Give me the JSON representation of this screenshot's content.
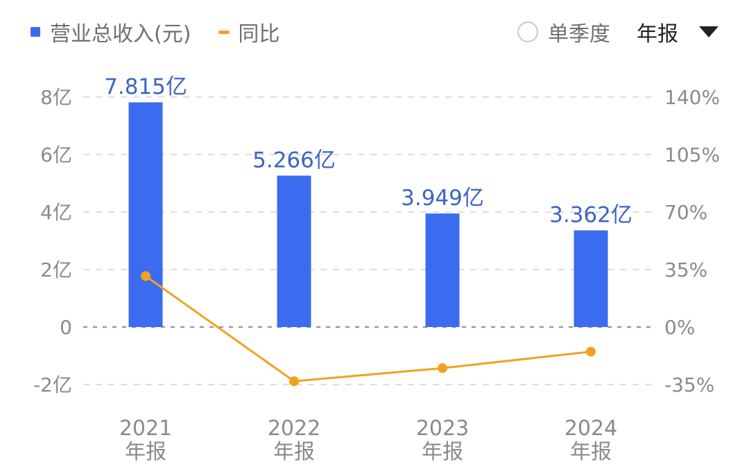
{
  "legend": {
    "revenue_label": "营业总收入(元)",
    "yoy_label": "同比"
  },
  "controls": {
    "quarterly_label": "单季度",
    "period_value": "年报"
  },
  "colors": {
    "bar": "#3b6cf0",
    "line": "#f0a21f",
    "data_label": "#3d64c2",
    "grid": "#dddddd",
    "zero_line": "#999999"
  },
  "chart_data": {
    "type": "bar",
    "categories": [
      "2021",
      "2022",
      "2023",
      "2024"
    ],
    "category_sublabels": [
      "年报",
      "年报",
      "年报",
      "年报"
    ],
    "series": [
      {
        "name": "营业总收入(元)",
        "type": "bar",
        "axis": "left",
        "values": [
          7.815,
          5.266,
          3.949,
          3.362
        ],
        "value_labels": [
          "7.815亿",
          "5.266亿",
          "3.949亿",
          "3.362亿"
        ]
      },
      {
        "name": "同比",
        "type": "line",
        "axis": "right",
        "values": [
          31,
          -33,
          -25.0,
          -15
        ]
      }
    ],
    "y_left": {
      "ylim": [
        -2,
        8
      ],
      "ticks": [
        8,
        6,
        4,
        2,
        0,
        -2
      ],
      "tick_labels": [
        "8亿",
        "6亿",
        "4亿",
        "2亿",
        "0",
        "-2亿"
      ]
    },
    "y_right": {
      "ylim": [
        -35,
        140
      ],
      "ticks": [
        140,
        105,
        70,
        35,
        0,
        -35
      ],
      "tick_labels": [
        "140%",
        "105%",
        "70%",
        "35%",
        "0%",
        "-35%"
      ]
    },
    "grid": true
  }
}
